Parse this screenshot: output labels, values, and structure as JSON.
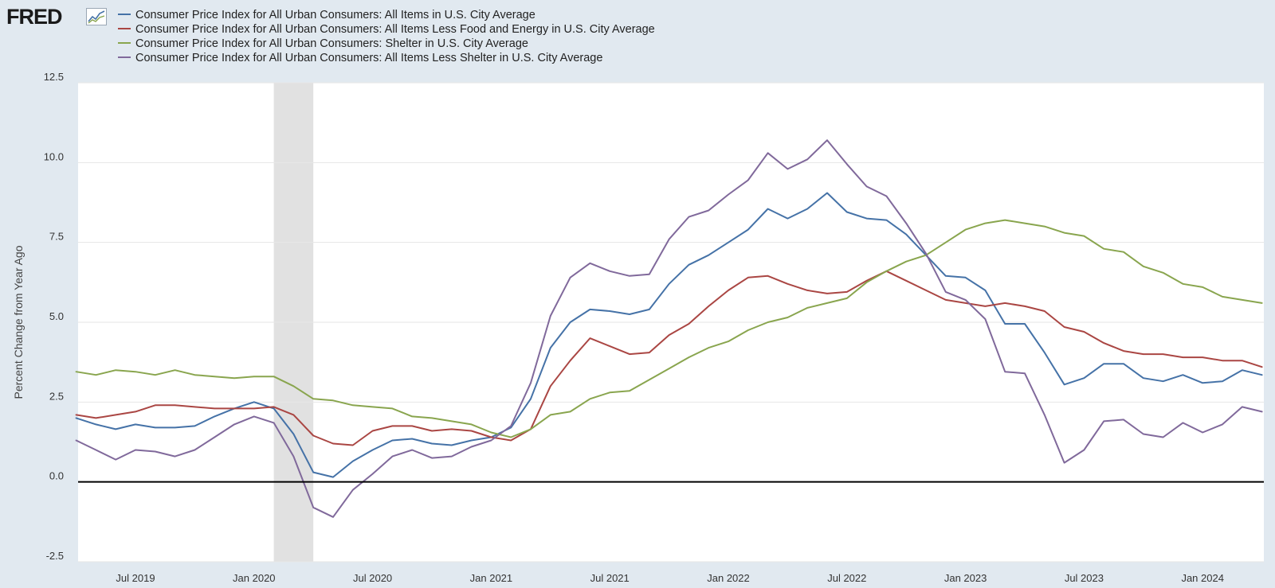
{
  "logo": {
    "text": "FRED",
    "icon": "line-graph-icon"
  },
  "colors": {
    "background": "#e1e9f0",
    "plot_background": "#ffffff",
    "grid": "#e6e6e6",
    "recession": "#e1e1e1",
    "zero_line": "#000000"
  },
  "chart_data": {
    "type": "line",
    "title": "",
    "xlabel": "",
    "ylabel": "Percent Change from Year Ago",
    "ylim": [
      -2.5,
      12.5
    ],
    "y_ticks": [
      "12.5",
      "10.0",
      "7.5",
      "5.0",
      "2.5",
      "0.0",
      "-2.5"
    ],
    "x_ticks": [
      {
        "label": "Jul 2019",
        "date": "2019-07"
      },
      {
        "label": "Jan 2020",
        "date": "2020-01"
      },
      {
        "label": "Jul 2020",
        "date": "2020-07"
      },
      {
        "label": "Jan 2021",
        "date": "2021-01"
      },
      {
        "label": "Jul 2021",
        "date": "2021-07"
      },
      {
        "label": "Jan 2022",
        "date": "2022-01"
      },
      {
        "label": "Jul 2022",
        "date": "2022-07"
      },
      {
        "label": "Jan 2023",
        "date": "2023-01"
      },
      {
        "label": "Jul 2023",
        "date": "2023-07"
      },
      {
        "label": "Jan 2024",
        "date": "2024-01"
      }
    ],
    "recession_band": {
      "start": "2020-02",
      "end": "2020-04"
    },
    "grid": true,
    "legend_position": "top-left",
    "x": [
      "2019-04",
      "2019-05",
      "2019-06",
      "2019-07",
      "2019-08",
      "2019-09",
      "2019-10",
      "2019-11",
      "2019-12",
      "2020-01",
      "2020-02",
      "2020-03",
      "2020-04",
      "2020-05",
      "2020-06",
      "2020-07",
      "2020-08",
      "2020-09",
      "2020-10",
      "2020-11",
      "2020-12",
      "2021-01",
      "2021-02",
      "2021-03",
      "2021-04",
      "2021-05",
      "2021-06",
      "2021-07",
      "2021-08",
      "2021-09",
      "2021-10",
      "2021-11",
      "2021-12",
      "2022-01",
      "2022-02",
      "2022-03",
      "2022-04",
      "2022-05",
      "2022-06",
      "2022-07",
      "2022-08",
      "2022-09",
      "2022-10",
      "2022-11",
      "2022-12",
      "2023-01",
      "2023-02",
      "2023-03",
      "2023-04",
      "2023-05",
      "2023-06",
      "2023-07",
      "2023-08",
      "2023-09",
      "2023-10",
      "2023-11",
      "2023-12",
      "2024-01",
      "2024-02",
      "2024-03",
      "2024-04"
    ],
    "series": [
      {
        "name": "Consumer Price Index for All Urban Consumers: All Items in U.S. City Average",
        "color": "#4572a7",
        "values": [
          2.0,
          1.8,
          1.65,
          1.8,
          1.7,
          1.7,
          1.75,
          2.05,
          2.3,
          2.5,
          2.3,
          1.5,
          0.3,
          0.15,
          0.65,
          1.0,
          1.3,
          1.35,
          1.2,
          1.15,
          1.3,
          1.4,
          1.7,
          2.6,
          4.2,
          5.0,
          5.4,
          5.35,
          5.25,
          5.4,
          6.2,
          6.8,
          7.1,
          7.5,
          7.9,
          8.55,
          8.25,
          8.55,
          9.05,
          8.45,
          8.25,
          8.2,
          7.75,
          7.1,
          6.45,
          6.4,
          6.0,
          4.95,
          4.95,
          4.05,
          3.05,
          3.25,
          3.7,
          3.7,
          3.25,
          3.15,
          3.35,
          3.1,
          3.15,
          3.5,
          3.35
        ]
      },
      {
        "name": "Consumer Price Index for All Urban Consumers: All Items Less Food and Energy in U.S. City Average",
        "color": "#aa4643",
        "values": [
          2.1,
          2.0,
          2.1,
          2.2,
          2.4,
          2.4,
          2.35,
          2.3,
          2.3,
          2.3,
          2.35,
          2.1,
          1.45,
          1.2,
          1.15,
          1.6,
          1.75,
          1.75,
          1.6,
          1.65,
          1.6,
          1.4,
          1.3,
          1.65,
          3.0,
          3.8,
          4.5,
          4.25,
          4.0,
          4.05,
          4.6,
          4.95,
          5.5,
          6.0,
          6.4,
          6.45,
          6.2,
          6.0,
          5.9,
          5.95,
          6.3,
          6.6,
          6.3,
          6.0,
          5.7,
          5.6,
          5.5,
          5.6,
          5.5,
          5.35,
          4.85,
          4.7,
          4.35,
          4.1,
          4.0,
          4.0,
          3.9,
          3.9,
          3.8,
          3.8,
          3.6
        ]
      },
      {
        "name": "Consumer Price Index for All Urban Consumers: Shelter in U.S. City Average",
        "color": "#89a54e",
        "values": [
          3.45,
          3.35,
          3.5,
          3.45,
          3.35,
          3.5,
          3.35,
          3.3,
          3.25,
          3.3,
          3.3,
          3.0,
          2.6,
          2.55,
          2.4,
          2.35,
          2.3,
          2.05,
          2.0,
          1.9,
          1.8,
          1.55,
          1.4,
          1.65,
          2.1,
          2.2,
          2.6,
          2.8,
          2.85,
          3.2,
          3.55,
          3.9,
          4.2,
          4.4,
          4.75,
          5.0,
          5.15,
          5.45,
          5.6,
          5.75,
          6.25,
          6.6,
          6.9,
          7.1,
          7.5,
          7.9,
          8.1,
          8.2,
          8.1,
          8.0,
          7.8,
          7.7,
          7.3,
          7.2,
          6.75,
          6.55,
          6.2,
          6.1,
          5.8,
          5.7,
          5.6
        ]
      },
      {
        "name": "Consumer Price Index for All Urban Consumers: All Items Less Shelter in U.S. City Average",
        "color": "#80699b",
        "values": [
          1.3,
          1.0,
          0.7,
          1.0,
          0.95,
          0.8,
          1.0,
          1.4,
          1.8,
          2.05,
          1.85,
          0.8,
          -0.8,
          -1.1,
          -0.25,
          0.25,
          0.8,
          1.0,
          0.75,
          0.8,
          1.1,
          1.3,
          1.75,
          3.1,
          5.2,
          6.4,
          6.85,
          6.6,
          6.45,
          6.5,
          7.6,
          8.3,
          8.5,
          9.0,
          9.45,
          10.3,
          9.8,
          10.1,
          10.7,
          9.95,
          9.25,
          8.95,
          8.1,
          7.15,
          5.95,
          5.7,
          5.1,
          3.45,
          3.4,
          2.1,
          0.6,
          1.0,
          1.9,
          1.95,
          1.5,
          1.4,
          1.85,
          1.55,
          1.8,
          2.35,
          2.2
        ]
      }
    ]
  }
}
